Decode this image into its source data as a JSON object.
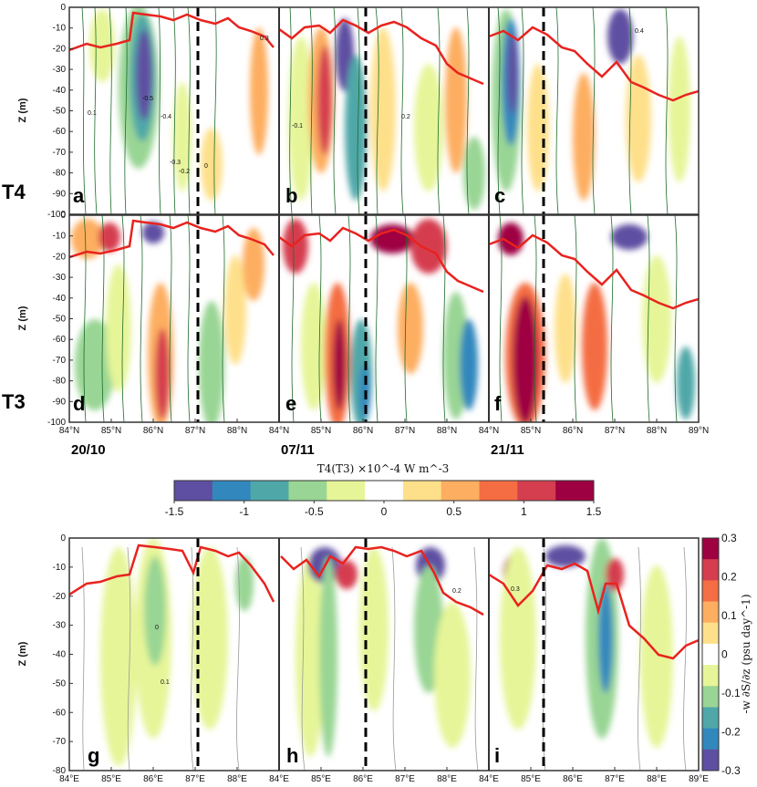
{
  "chart_data": [
    {
      "type": "heatmap",
      "row_label": "T4",
      "panels": [
        {
          "letter": "a",
          "date": "20/10"
        },
        {
          "letter": "b",
          "date": "07/11"
        },
        {
          "letter": "c",
          "date": "21/11"
        }
      ],
      "ylabel": "Z (m)",
      "yticks": [
        "0",
        "-10",
        "-20",
        "-30",
        "-40",
        "-50",
        "-60",
        "-70",
        "-80",
        "-90",
        "-100"
      ],
      "ylim": [
        -100,
        0
      ],
      "contour_labels": [
        "-0.5",
        "-0.4",
        "-0.3",
        "-0.2",
        "-0.1",
        "0",
        "0.1",
        "0.2",
        "0.3",
        "0.4"
      ]
    },
    {
      "type": "heatmap",
      "row_label": "T3",
      "panels": [
        {
          "letter": "d",
          "date": "20/10"
        },
        {
          "letter": "e",
          "date": "07/11"
        },
        {
          "letter": "f",
          "date": "21/11"
        }
      ],
      "ylabel": "Z (m)",
      "yticks": [
        "0",
        "-10",
        "-20",
        "-30",
        "-40",
        "-50",
        "-60",
        "-70",
        "-80",
        "-90",
        "-100"
      ],
      "ylim": [
        -100,
        0
      ],
      "xticks": [
        "84°N",
        "85°N",
        "86°N",
        "87°N",
        "88°N",
        "84°N",
        "85°N",
        "86°N",
        "87°N",
        "88°N",
        "84°N",
        "85°N",
        "86°N",
        "87°N",
        "88°N",
        "89°N"
      ],
      "dates": [
        "20/10",
        "07/11",
        "21/11"
      ]
    },
    {
      "type": "colorbar",
      "title": "T4(T3) ×10^-4 W m^-3",
      "ticks": [
        "-1.5",
        "-1",
        "-0.5",
        "0",
        "0.5",
        "1",
        "1.5"
      ],
      "range": [
        -1.5,
        1.5
      ],
      "colors": [
        "#5e4fa2",
        "#3288bd",
        "#4fa7a8",
        "#99d594",
        "#e6f598",
        "#ffffff",
        "#fee08b",
        "#fdae61",
        "#f46d43",
        "#d53e4f",
        "#9e0142"
      ]
    },
    {
      "type": "heatmap",
      "panels": [
        {
          "letter": "g"
        },
        {
          "letter": "h"
        },
        {
          "letter": "i"
        }
      ],
      "ylabel": "Z (m)",
      "yticks": [
        "0",
        "-10",
        "-20",
        "-30",
        "-40",
        "-50",
        "-60",
        "-70",
        "-80"
      ],
      "ylim": [
        -80,
        0
      ],
      "xticks": [
        "84°E",
        "85°E",
        "86°E",
        "87°E",
        "88°E",
        "84°E",
        "85°E",
        "86°E",
        "87°E",
        "88°E",
        "84°E",
        "85°E",
        "86°E",
        "87°E",
        "88°E",
        "89°E"
      ],
      "colorbar": {
        "label": "-w ∂S/∂z (psu day^-1)",
        "ticks": [
          "0.3",
          "0.2",
          "0.1",
          "0",
          "-0.1",
          "-0.2",
          "-0.3"
        ],
        "range": [
          -0.3,
          0.3
        ],
        "colors": [
          "#9e0142",
          "#d53e4f",
          "#f46d43",
          "#fdae61",
          "#fee08b",
          "#ffffff",
          "#e6f598",
          "#99d594",
          "#4fa7a8",
          "#3288bd",
          "#5e4fa2"
        ]
      },
      "contour_labels": [
        "0",
        "0.1",
        "0.2",
        "0.3"
      ]
    }
  ]
}
